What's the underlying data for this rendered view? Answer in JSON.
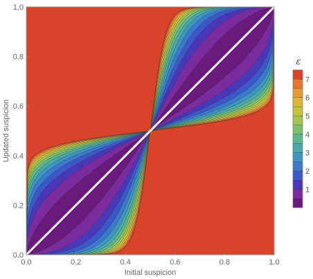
{
  "chart_data": {
    "type": "contour",
    "xlabel": "Initial suspicion",
    "ylabel": "Updated suspicion",
    "xlim": [
      0,
      1
    ],
    "ylim": [
      0,
      1
    ],
    "x_ticks": [
      "0.0",
      "0.2",
      "0.4",
      "0.6",
      "0.8",
      "1.0"
    ],
    "y_ticks": [
      "0.0",
      "0.2",
      "0.4",
      "0.6",
      "0.8",
      "1.0"
    ],
    "x_tick_values": [
      0,
      0.2,
      0.4,
      0.6,
      0.8,
      1.0
    ],
    "y_tick_values": [
      0,
      0.2,
      0.4,
      0.6,
      0.8,
      1.0
    ],
    "contour_levels": [
      0.5,
      1,
      1.5,
      2,
      2.5,
      3,
      3.5,
      4,
      4.5,
      5,
      5.5,
      6,
      6.5,
      7,
      7.5
    ],
    "diagonal_line": {
      "from": [
        0,
        0
      ],
      "to": [
        1,
        1
      ],
      "color": "#ffffff"
    },
    "legend": {
      "title": "ε",
      "ticks": [
        "1",
        "2",
        "3",
        "4",
        "5",
        "6",
        "7"
      ],
      "tick_values": [
        1,
        2,
        3,
        4,
        5,
        6,
        7
      ],
      "range": [
        0,
        7.5
      ],
      "band_colors": [
        "#6a1a7a",
        "#7b2b9e",
        "#4a37b8",
        "#3a58c8",
        "#3b79cc",
        "#3e95c2",
        "#49a9a8",
        "#5db78e",
        "#7fc06d",
        "#a3c452",
        "#c4c23f",
        "#dbb63a",
        "#e89a34",
        "#e8762e",
        "#d9432a"
      ]
    }
  }
}
